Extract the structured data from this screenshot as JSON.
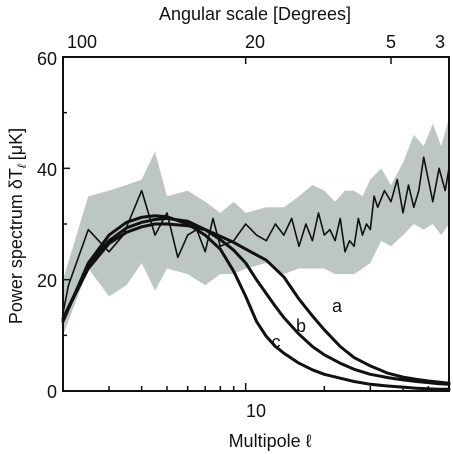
{
  "chart_data": {
    "type": "line",
    "title": "",
    "top_axis": {
      "label": "Angular scale [Degrees]",
      "ticks": [
        "100",
        "20",
        "5",
        "3"
      ]
    },
    "xlabel": "Multipole ℓ",
    "ylabel": "Power spectrum δT",
    "ylabel_subscript": "ℓ",
    "ylabel_unit": "[μK]",
    "x_scale": "log",
    "xlim": [
      2,
      60
    ],
    "x_ticks": [
      "10"
    ],
    "ylim": [
      0,
      60
    ],
    "y_ticks": [
      "0",
      "20",
      "40",
      "60"
    ],
    "band_color": "#bcc7c4",
    "line_color": "#111111",
    "measured": {
      "x": [
        2.0,
        2.1,
        2.5,
        3.0,
        3.4,
        4.0,
        4.5,
        5.0,
        5.5,
        6.0,
        6.5,
        7.0,
        7.5,
        8.0,
        9.0,
        10.0,
        11.0,
        12.0,
        13.0,
        14.0,
        15.0,
        16.0,
        17.0,
        18.0,
        19.0,
        20.0,
        21.0,
        22.0,
        23.0,
        24.0,
        25.0,
        26.0,
        27.0,
        28.0,
        29.0,
        30.0,
        31.0,
        32.0,
        34.0,
        36.0,
        38.0,
        40.0,
        42.0,
        44.0,
        46.0,
        48.0,
        50.0,
        52.0,
        55.0,
        58.0,
        60.0
      ],
      "y": [
        14,
        19,
        29,
        25,
        28,
        36,
        28,
        32,
        24,
        28,
        29,
        25,
        31,
        26,
        27,
        30,
        28,
        27,
        30,
        28,
        31,
        26,
        30,
        27,
        32,
        28,
        29,
        27,
        31,
        25,
        27,
        26,
        31,
        28,
        30,
        29,
        35,
        33,
        36,
        34,
        38,
        32,
        37,
        33,
        36,
        42,
        38,
        34,
        40,
        36,
        40
      ]
    },
    "band": {
      "x": [
        2.0,
        2.5,
        3.0,
        3.5,
        4.0,
        4.5,
        5.0,
        6.0,
        7.0,
        8.0,
        9.0,
        10.0,
        12.0,
        14.0,
        16.0,
        18.0,
        20.0,
        22.0,
        24.0,
        26.0,
        28.0,
        30.0,
        33.0,
        36.0,
        40.0,
        44.0,
        48.0,
        52.0,
        56.0,
        60.0
      ],
      "upper": [
        20,
        35,
        36,
        37,
        38,
        43,
        35,
        36,
        34,
        32,
        34,
        32,
        33,
        33,
        35,
        37,
        36,
        34,
        36,
        36,
        35,
        38,
        40,
        37,
        41,
        46,
        44,
        48,
        44,
        49
      ],
      "lower": [
        10,
        22,
        17,
        19,
        23,
        18,
        22,
        21,
        19,
        21,
        21,
        22,
        23,
        21,
        22,
        22,
        22,
        21,
        21,
        21,
        22,
        23,
        27,
        26,
        28,
        30,
        29,
        30,
        28,
        30
      ]
    },
    "series": [
      {
        "name": "a",
        "x": [
          2.0,
          2.5,
          3.0,
          3.5,
          4.0,
          4.5,
          5.0,
          6.0,
          7.0,
          8.0,
          9.0,
          10.0,
          12.0,
          14.0,
          16.0,
          18.0,
          20.0,
          23.0,
          26.0,
          30.0,
          35.0,
          40.0,
          45.0,
          50.0,
          55.0,
          60.0
        ],
        "y": [
          13,
          22,
          26.5,
          28.5,
          29.5,
          30,
          30,
          29.7,
          29,
          27.8,
          26.7,
          25.5,
          23.5,
          20.5,
          16.5,
          13.5,
          11,
          8,
          6,
          4.5,
          3.2,
          2.5,
          2.1,
          1.8,
          1.6,
          1.4
        ]
      },
      {
        "name": "b",
        "x": [
          2.0,
          2.5,
          3.0,
          3.5,
          4.0,
          4.5,
          5.0,
          6.0,
          7.0,
          8.0,
          9.0,
          10.0,
          11.0,
          12.0,
          13.0,
          14.0,
          16.0,
          18.0,
          20.0,
          23.0,
          26.0,
          30.0,
          35.0,
          40.0,
          45.0,
          50.0,
          55.0,
          60.0
        ],
        "y": [
          13,
          22.5,
          27,
          29.3,
          30.3,
          30.8,
          31,
          30.5,
          29,
          27.2,
          25.3,
          23,
          20,
          17.5,
          15.2,
          13.2,
          10.2,
          8,
          6.5,
          5,
          3.9,
          3,
          2.4,
          2,
          1.7,
          1.5,
          1.3,
          1.2
        ]
      },
      {
        "name": "c",
        "x": [
          2.0,
          2.5,
          3.0,
          3.5,
          4.0,
          4.5,
          5.0,
          6.0,
          7.0,
          8.0,
          9.0,
          10.0,
          11.0,
          12.0,
          13.0,
          14.0,
          16.0,
          18.0,
          20.0,
          23.0,
          26.0,
          30.0,
          35.0,
          40.0,
          45.0,
          50.0,
          55.0,
          60.0
        ],
        "y": [
          12.5,
          23,
          28,
          30.3,
          31.2,
          31.5,
          31.3,
          30,
          28,
          25.5,
          21.5,
          17,
          12.5,
          9.8,
          8,
          6.8,
          5,
          3.8,
          3,
          2.3,
          1.7,
          1.2,
          0.9,
          0.7,
          0.5,
          0.4,
          0.3,
          0.3
        ]
      }
    ],
    "series_labels": [
      "a",
      "b",
      "c"
    ]
  }
}
